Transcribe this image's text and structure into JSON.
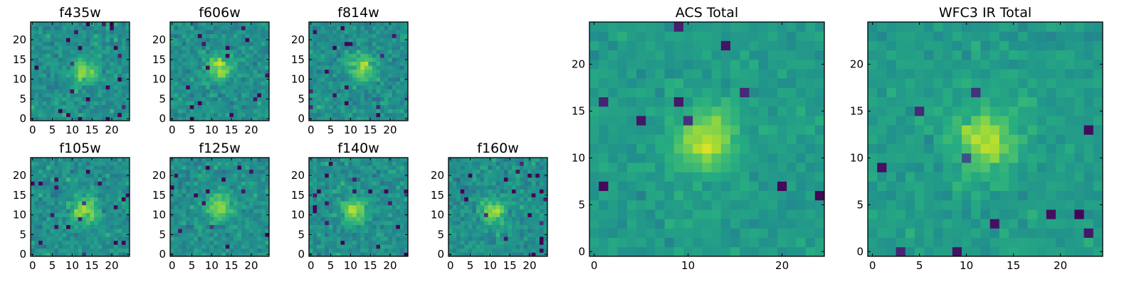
{
  "figure": {
    "type": "image-grid",
    "colormap": "viridis"
  },
  "chart_data": [
    {
      "type": "heatmap",
      "title": "f435w",
      "shape": [
        25,
        25
      ],
      "center": [
        13,
        12
      ],
      "xlim": [
        0,
        24
      ],
      "ylim": [
        0,
        24
      ],
      "xticks": [
        0,
        5,
        10,
        15,
        20
      ],
      "yticks": [
        0,
        5,
        10,
        15,
        20
      ],
      "xtick_labels": [
        "0",
        "5",
        "10",
        "15",
        "20"
      ],
      "ytick_labels": [
        "0",
        "5",
        "10",
        "15",
        "20"
      ]
    },
    {
      "type": "heatmap",
      "title": "f606w",
      "shape": [
        25,
        25
      ],
      "center": [
        12,
        13
      ],
      "xlim": [
        0,
        24
      ],
      "ylim": [
        0,
        24
      ],
      "xticks": [
        0,
        5,
        10,
        15,
        20
      ],
      "yticks": [
        0,
        5,
        10,
        15,
        20
      ],
      "xtick_labels": [
        "0",
        "5",
        "10",
        "15",
        "20"
      ],
      "ytick_labels": [
        "0",
        "5",
        "10",
        "15",
        "20"
      ]
    },
    {
      "type": "heatmap",
      "title": "f814w",
      "shape": [
        25,
        25
      ],
      "center": [
        13,
        13
      ],
      "xlim": [
        0,
        24
      ],
      "ylim": [
        0,
        24
      ],
      "xticks": [
        0,
        5,
        10,
        15,
        20
      ],
      "yticks": [
        0,
        5,
        10,
        15,
        20
      ],
      "xtick_labels": [
        "0",
        "5",
        "10",
        "15",
        "20"
      ],
      "ytick_labels": [
        "0",
        "5",
        "10",
        "15",
        "20"
      ]
    },
    {
      "type": "heatmap",
      "title": "f105w",
      "shape": [
        25,
        25
      ],
      "center": [
        13,
        11
      ],
      "xlim": [
        0,
        24
      ],
      "ylim": [
        0,
        24
      ],
      "xticks": [
        0,
        5,
        10,
        15,
        20
      ],
      "yticks": [
        0,
        5,
        10,
        15,
        20
      ],
      "xtick_labels": [
        "0",
        "5",
        "10",
        "15",
        "20"
      ],
      "ytick_labels": [
        "0",
        "5",
        "10",
        "15",
        "20"
      ]
    },
    {
      "type": "heatmap",
      "title": "f125w",
      "shape": [
        25,
        25
      ],
      "center": [
        12,
        12
      ],
      "xlim": [
        0,
        24
      ],
      "ylim": [
        0,
        24
      ],
      "xticks": [
        0,
        5,
        10,
        15,
        20
      ],
      "yticks": [
        0,
        5,
        10,
        15,
        20
      ],
      "xtick_labels": [
        "0",
        "5",
        "10",
        "15",
        "20"
      ],
      "ytick_labels": [
        "0",
        "5",
        "10",
        "15",
        "20"
      ]
    },
    {
      "type": "heatmap",
      "title": "f140w",
      "shape": [
        25,
        25
      ],
      "center": [
        11,
        11
      ],
      "xlim": [
        0,
        24
      ],
      "ylim": [
        0,
        24
      ],
      "xticks": [
        0,
        5,
        10,
        15,
        20
      ],
      "yticks": [
        0,
        5,
        10,
        15,
        20
      ],
      "xtick_labels": [
        "0",
        "5",
        "10",
        "15",
        "20"
      ],
      "ytick_labels": [
        "0",
        "5",
        "10",
        "15",
        "20"
      ]
    },
    {
      "type": "heatmap",
      "title": "f160w",
      "shape": [
        25,
        25
      ],
      "center": [
        11,
        11
      ],
      "xlim": [
        0,
        24
      ],
      "ylim": [
        0,
        24
      ],
      "xticks": [
        0,
        5,
        10,
        15,
        20
      ],
      "yticks": [
        0,
        5,
        10,
        15,
        20
      ],
      "xtick_labels": [
        "0",
        "5",
        "10",
        "15",
        "20"
      ],
      "ytick_labels": [
        "0",
        "5",
        "10",
        "15",
        "20"
      ]
    },
    {
      "type": "heatmap",
      "title": "ACS Total",
      "shape": [
        25,
        25
      ],
      "center": [
        12,
        12
      ],
      "xlim": [
        0,
        24
      ],
      "ylim": [
        0,
        24
      ],
      "xticks": [
        0,
        10,
        20
      ],
      "yticks": [
        0,
        5,
        10,
        15,
        20
      ],
      "xtick_labels": [
        "0",
        "10",
        "20"
      ],
      "ytick_labels": [
        "0",
        "5",
        "10",
        "15",
        "20"
      ]
    },
    {
      "type": "heatmap",
      "title": "WFC3 IR Total",
      "shape": [
        25,
        25
      ],
      "center": [
        12,
        12
      ],
      "xlim": [
        0,
        24
      ],
      "ylim": [
        0,
        24
      ],
      "xticks": [
        0,
        5,
        10,
        15,
        20
      ],
      "yticks": [
        0,
        5,
        10,
        15,
        20
      ],
      "xtick_labels": [
        "0",
        "5",
        "10",
        "15",
        "20"
      ],
      "ytick_labels": [
        "0",
        "5",
        "10",
        "15",
        "20"
      ]
    }
  ]
}
